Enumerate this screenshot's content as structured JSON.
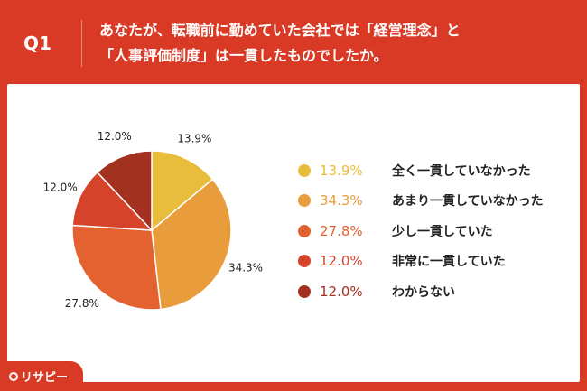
{
  "header": {
    "q_label": "Q1",
    "title_line1": "あなたが、転職前に勤めていた会社では「経営理念」と",
    "title_line2": "「人事評価制度」は一貫したものでしたか。"
  },
  "logo": {
    "text": "リサピー"
  },
  "chart_data": {
    "type": "pie",
    "start": "top",
    "direction": "clockwise",
    "slices": [
      {
        "label": "全く一貫していなかった",
        "value": 13.9,
        "display": "13.9%",
        "color": "#e9bd3c"
      },
      {
        "label": "あまり一貫していなかった",
        "value": 34.3,
        "display": "34.3%",
        "color": "#e99c3c"
      },
      {
        "label": "少し一貫していた",
        "value": 27.8,
        "display": "27.8%",
        "color": "#e3622f"
      },
      {
        "label": "非常に一貫していた",
        "value": 12.0,
        "display": "12.0%",
        "color": "#d6432b"
      },
      {
        "label": "わからない",
        "value": 12.0,
        "display": "12.0%",
        "color": "#a2311f"
      }
    ],
    "legend_placement": "right"
  }
}
